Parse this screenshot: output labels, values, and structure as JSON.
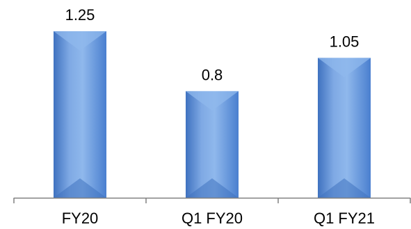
{
  "chart_data": {
    "type": "bar",
    "categories": [
      "FY20",
      "Q1 FY20",
      "Q1 FY21"
    ],
    "values": [
      1.25,
      0.8,
      1.05
    ],
    "data_labels": [
      "1.25",
      "0.8",
      "1.05"
    ],
    "title": "",
    "xlabel": "",
    "ylabel": "",
    "ylim": [
      0,
      1.35
    ],
    "grid": false,
    "legend": "none",
    "colors": {
      "bar_fill": "#5b8fd9",
      "bar_fill_light": "#8fb8ec",
      "bar_fill_dark": "#3f72c0",
      "bar_bevel": "#4a7fcf",
      "axis": "#808080"
    }
  }
}
